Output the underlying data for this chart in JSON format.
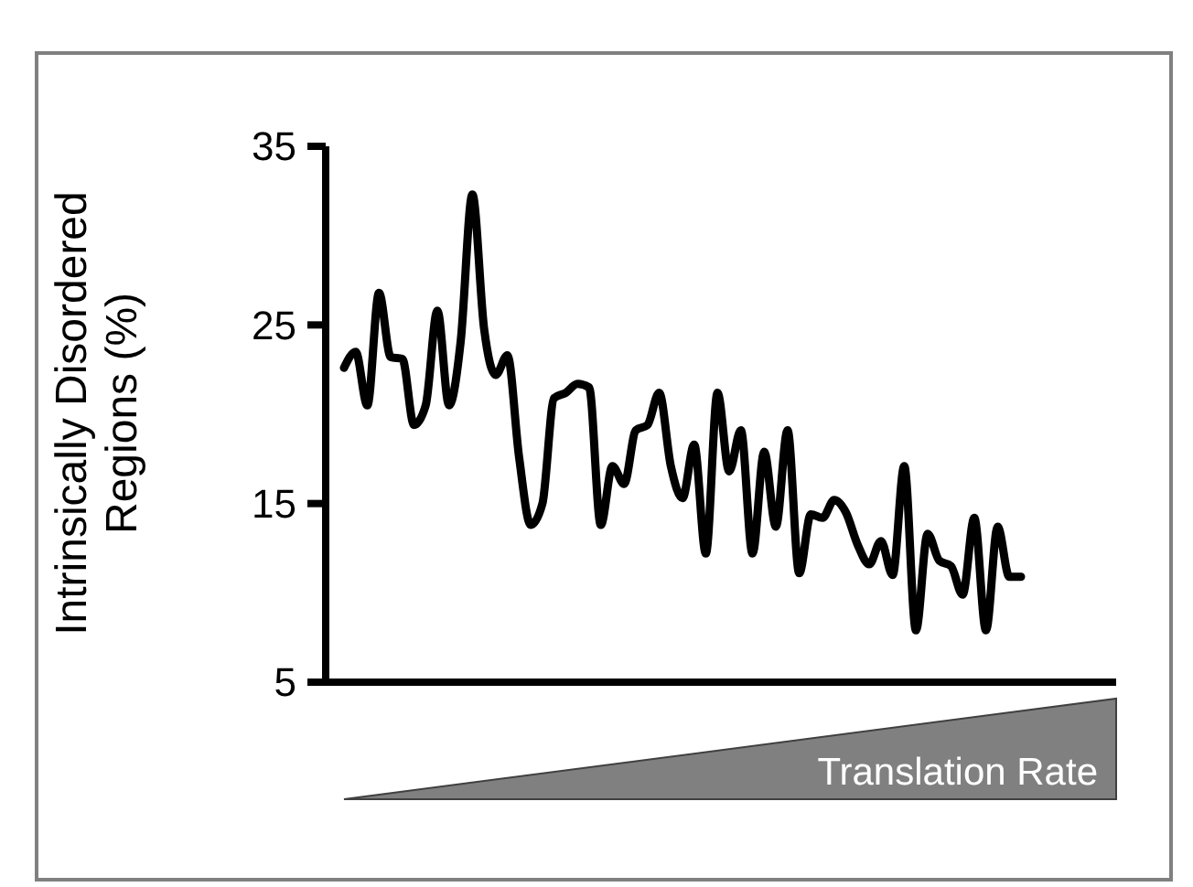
{
  "chart_data": {
    "type": "line",
    "ylabel": "Intrinsically Disordered\nRegions (%)",
    "ylim": [
      5,
      35
    ],
    "yticks": [
      5,
      15,
      25,
      35
    ],
    "grid": false,
    "line_style": "solid",
    "tick_labels": "y",
    "categories": [
      null,
      null,
      null,
      null,
      null,
      null,
      null,
      null,
      null,
      null,
      null,
      null,
      null,
      null,
      null,
      null,
      null,
      null,
      null,
      null,
      null,
      null,
      null,
      null,
      null,
      null,
      null,
      null,
      null,
      null,
      null,
      null,
      null,
      null,
      null,
      null,
      null,
      null,
      null,
      null,
      null,
      null,
      null,
      null,
      null,
      null,
      null,
      null,
      null,
      null,
      null,
      null,
      null,
      null,
      null,
      null,
      null,
      null,
      null
    ],
    "series": [
      {
        "color": "#000000",
        "values": [
          22.6,
          23.5,
          20.5,
          26.8,
          23.2,
          23.1,
          19.4,
          20.5,
          25.8,
          20.5,
          24.1,
          32.3,
          24.8,
          22.2,
          23.3,
          17.6,
          13.8,
          15.0,
          20.9,
          21.2,
          21.7,
          21.5,
          13.8,
          17.1,
          16.1,
          19.1,
          19.4,
          21.2,
          17.1,
          15.3,
          18.3,
          12.2,
          21.2,
          16.8,
          19.1,
          12.2,
          17.9,
          13.7,
          19.1,
          11.1,
          14.4,
          14.2,
          15.2,
          14.5,
          12.7,
          11.6,
          12.9,
          11.0,
          17.1,
          7.9,
          13.3,
          11.8,
          11.5,
          9.9,
          14.2,
          7.9,
          13.7,
          10.9,
          10.9
        ]
      }
    ],
    "annotations": [
      "Translation Rate"
    ]
  }
}
